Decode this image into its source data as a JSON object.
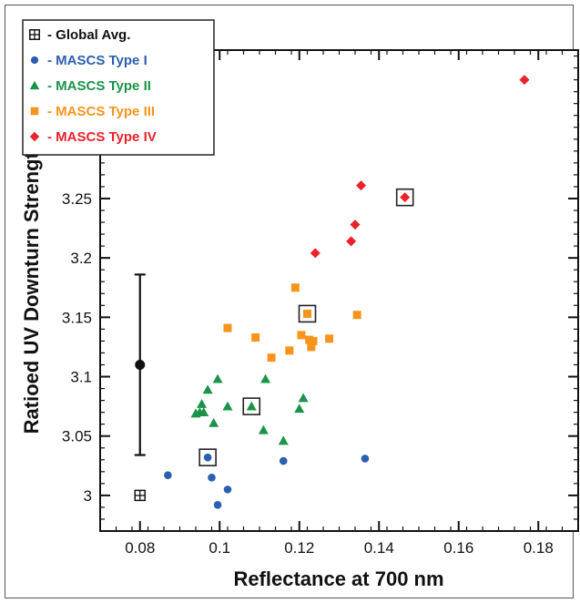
{
  "chart_data": {
    "type": "scatter",
    "xlabel": "Reflectance at 700 nm",
    "ylabel": "Ratioed UV Downturn Strength",
    "xlim": [
      0.07,
      0.19
    ],
    "ylim": [
      2.97,
      3.375
    ],
    "x_ticks": [
      0.08,
      0.1,
      0.12,
      0.14,
      0.16,
      0.18
    ],
    "x_tick_labels": [
      "0.08",
      "0.1",
      "0.12",
      "0.14",
      "0.16",
      "0.18"
    ],
    "y_ticks": [
      3.0,
      3.05,
      3.1,
      3.15,
      3.2,
      3.25
    ],
    "y_tick_labels": [
      "3",
      "3.05",
      "3.1",
      "3.15",
      "3.2",
      "3.25"
    ],
    "legend_position": "top-left",
    "series": [
      {
        "name": "Global Avg.",
        "label": "- Global Avg.",
        "color": "#111111",
        "marker": "boxed-plus",
        "points": [
          [
            0.08,
            3.0
          ]
        ]
      },
      {
        "name": "MASCS Type I",
        "label": "- MASCS Type I",
        "color": "#2b5fb0",
        "marker": "circle",
        "points": [
          [
            0.087,
            3.017
          ],
          [
            0.097,
            3.032
          ],
          [
            0.098,
            3.015
          ],
          [
            0.0995,
            2.992
          ],
          [
            0.102,
            3.005
          ],
          [
            0.116,
            3.029
          ],
          [
            0.1365,
            3.031
          ]
        ]
      },
      {
        "name": "MASCS Type II",
        "label": "- MASCS Type II",
        "color": "#1a9448",
        "marker": "triangle",
        "points": [
          [
            0.094,
            3.069
          ],
          [
            0.095,
            3.07
          ],
          [
            0.0955,
            3.077
          ],
          [
            0.096,
            3.07
          ],
          [
            0.097,
            3.089
          ],
          [
            0.0985,
            3.061
          ],
          [
            0.0995,
            3.098
          ],
          [
            0.102,
            3.075
          ],
          [
            0.108,
            3.075
          ],
          [
            0.111,
            3.055
          ],
          [
            0.1115,
            3.098
          ],
          [
            0.116,
            3.046
          ],
          [
            0.12,
            3.073
          ],
          [
            0.121,
            3.082
          ]
        ]
      },
      {
        "name": "MASCS Type III",
        "label": "- MASCS Type III",
        "color": "#f7941d",
        "marker": "square",
        "points": [
          [
            0.102,
            3.141
          ],
          [
            0.109,
            3.133
          ],
          [
            0.113,
            3.116
          ],
          [
            0.1175,
            3.122
          ],
          [
            0.119,
            3.175
          ],
          [
            0.1205,
            3.135
          ],
          [
            0.122,
            3.153
          ],
          [
            0.1225,
            3.131
          ],
          [
            0.123,
            3.125
          ],
          [
            0.1235,
            3.13
          ],
          [
            0.1275,
            3.132
          ],
          [
            0.1345,
            3.152
          ]
        ]
      },
      {
        "name": "MASCS Type IV",
        "label": "- MASCS Type IV",
        "color": "#e8232a",
        "marker": "diamond",
        "points": [
          [
            0.124,
            3.204
          ],
          [
            0.133,
            3.214
          ],
          [
            0.134,
            3.228
          ],
          [
            0.1355,
            3.261
          ],
          [
            0.1465,
            3.251
          ],
          [
            0.1765,
            3.35
          ]
        ]
      }
    ],
    "highlighted_points": [
      {
        "series": "MASCS Type I",
        "x": 0.097,
        "y": 3.032
      },
      {
        "series": "MASCS Type II",
        "x": 0.108,
        "y": 3.075
      },
      {
        "series": "MASCS Type III",
        "x": 0.122,
        "y": 3.153
      },
      {
        "series": "MASCS Type IV",
        "x": 0.1465,
        "y": 3.251
      }
    ],
    "error_bar": {
      "x": 0.08,
      "y": 3.11,
      "low": 3.034,
      "high": 3.186,
      "color": "#111111"
    }
  }
}
